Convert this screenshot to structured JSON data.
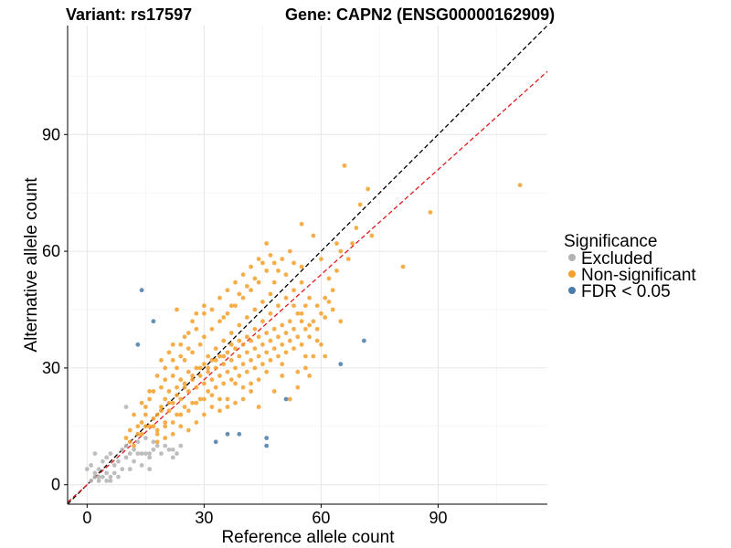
{
  "chart_data": {
    "type": "scatter",
    "title_left": "Variant: rs17597",
    "title_right": "Gene: CAPN2 (ENSG00000162909)",
    "xlabel": "Reference allele count",
    "ylabel": "Alternative allele count",
    "xlim": [
      -5,
      118
    ],
    "ylim": [
      -5,
      118
    ],
    "xticks": [
      0,
      30,
      60,
      90
    ],
    "yticks": [
      0,
      30,
      60,
      90
    ],
    "grid": true,
    "legend": {
      "title": "Significance",
      "position": "right",
      "entries": [
        {
          "label": "Excluded",
          "color": "#b3b3b3"
        },
        {
          "label": "Non-significant",
          "color": "#f5a02a"
        },
        {
          "label": "FDR < 0.05",
          "color": "#4a7aa8"
        }
      ]
    },
    "reference_lines": [
      {
        "name": "identity",
        "slope": 1.0,
        "intercept": 0,
        "color": "#000000",
        "dash": true
      },
      {
        "name": "fitted",
        "slope": 0.9,
        "intercept": 0,
        "color": "#e41a1c",
        "dash": true
      }
    ],
    "series": [
      {
        "group": "Excluded",
        "color": "#b3b3b3",
        "points": [
          [
            1,
            1
          ],
          [
            2,
            2
          ],
          [
            2,
            3
          ],
          [
            3,
            1
          ],
          [
            3,
            2
          ],
          [
            3,
            4
          ],
          [
            4,
            2
          ],
          [
            4,
            6
          ],
          [
            5,
            1
          ],
          [
            5,
            3
          ],
          [
            5,
            7
          ],
          [
            6,
            1
          ],
          [
            6,
            2
          ],
          [
            7,
            3
          ],
          [
            7,
            5
          ],
          [
            8,
            2
          ],
          [
            8,
            6
          ],
          [
            9,
            9
          ],
          [
            9,
            4
          ],
          [
            10,
            10
          ],
          [
            10,
            7
          ],
          [
            11,
            8
          ],
          [
            12,
            9
          ],
          [
            12,
            6
          ],
          [
            13,
            8
          ],
          [
            13,
            11
          ],
          [
            14,
            5
          ],
          [
            14,
            8
          ],
          [
            15,
            8
          ],
          [
            15,
            12
          ],
          [
            16,
            8
          ],
          [
            16,
            7
          ],
          [
            17,
            9
          ],
          [
            17,
            11
          ],
          [
            18,
            10
          ],
          [
            19,
            8
          ],
          [
            20,
            10
          ],
          [
            21,
            9
          ],
          [
            22,
            7
          ],
          [
            23,
            8
          ],
          [
            24,
            10
          ],
          [
            10,
            20
          ],
          [
            1,
            5
          ],
          [
            0,
            4
          ],
          [
            2,
            8
          ],
          [
            6,
            8
          ],
          [
            11,
            4
          ],
          [
            16,
            4
          ],
          [
            22,
            9
          ]
        ]
      },
      {
        "group": "Non-significant",
        "color": "#f5a02a",
        "points": [
          [
            10,
            12
          ],
          [
            11,
            14
          ],
          [
            12,
            10
          ],
          [
            13,
            15
          ],
          [
            14,
            16
          ],
          [
            14,
            13
          ],
          [
            15,
            18
          ],
          [
            15,
            20
          ],
          [
            16,
            15
          ],
          [
            16,
            22
          ],
          [
            17,
            17
          ],
          [
            17,
            24
          ],
          [
            18,
            18
          ],
          [
            18,
            13
          ],
          [
            19,
            20
          ],
          [
            19,
            25
          ],
          [
            20,
            16
          ],
          [
            20,
            22
          ],
          [
            20,
            27
          ],
          [
            21,
            19
          ],
          [
            21,
            24
          ],
          [
            22,
            21
          ],
          [
            22,
            28
          ],
          [
            23,
            18
          ],
          [
            23,
            25
          ],
          [
            23,
            30
          ],
          [
            24,
            22
          ],
          [
            24,
            27
          ],
          [
            25,
            20
          ],
          [
            25,
            26
          ],
          [
            25,
            32
          ],
          [
            26,
            24
          ],
          [
            26,
            29
          ],
          [
            27,
            21
          ],
          [
            27,
            27
          ],
          [
            27,
            34
          ],
          [
            28,
            25
          ],
          [
            28,
            30
          ],
          [
            29,
            22
          ],
          [
            29,
            28
          ],
          [
            29,
            36
          ],
          [
            30,
            26
          ],
          [
            30,
            31
          ],
          [
            30,
            38
          ],
          [
            31,
            24
          ],
          [
            31,
            29
          ],
          [
            31,
            33
          ],
          [
            32,
            27
          ],
          [
            32,
            32
          ],
          [
            32,
            40
          ],
          [
            33,
            25
          ],
          [
            33,
            30
          ],
          [
            33,
            35
          ],
          [
            34,
            28
          ],
          [
            34,
            33
          ],
          [
            34,
            42
          ],
          [
            35,
            26
          ],
          [
            35,
            31
          ],
          [
            35,
            37
          ],
          [
            36,
            29
          ],
          [
            36,
            34
          ],
          [
            36,
            44
          ],
          [
            37,
            27
          ],
          [
            37,
            32
          ],
          [
            37,
            39
          ],
          [
            38,
            30
          ],
          [
            38,
            35
          ],
          [
            38,
            46
          ],
          [
            39,
            28
          ],
          [
            39,
            33
          ],
          [
            39,
            41
          ],
          [
            40,
            31
          ],
          [
            40,
            36
          ],
          [
            40,
            48
          ],
          [
            41,
            29
          ],
          [
            41,
            34
          ],
          [
            41,
            43
          ],
          [
            42,
            32
          ],
          [
            42,
            37
          ],
          [
            42,
            50
          ],
          [
            43,
            30
          ],
          [
            43,
            35
          ],
          [
            43,
            45
          ],
          [
            44,
            33
          ],
          [
            44,
            38
          ],
          [
            44,
            52
          ],
          [
            45,
            31
          ],
          [
            45,
            36
          ],
          [
            45,
            47
          ],
          [
            46,
            34
          ],
          [
            46,
            39
          ],
          [
            46,
            55
          ],
          [
            47,
            32
          ],
          [
            47,
            37
          ],
          [
            47,
            49
          ],
          [
            48,
            35
          ],
          [
            48,
            40
          ],
          [
            48,
            57
          ],
          [
            49,
            33
          ],
          [
            49,
            38
          ],
          [
            50,
            36
          ],
          [
            50,
            41
          ],
          [
            50,
            58
          ],
          [
            51,
            34
          ],
          [
            51,
            39
          ],
          [
            52,
            37
          ],
          [
            52,
            42
          ],
          [
            52,
            60
          ],
          [
            53,
            35
          ],
          [
            53,
            40
          ],
          [
            54,
            38
          ],
          [
            54,
            44
          ],
          [
            55,
            36
          ],
          [
            55,
            42
          ],
          [
            56,
            40
          ],
          [
            56,
            46
          ],
          [
            57,
            38
          ],
          [
            58,
            42
          ],
          [
            59,
            40
          ],
          [
            60,
            44
          ],
          [
            61,
            43
          ],
          [
            62,
            47
          ],
          [
            63,
            50
          ],
          [
            64,
            55
          ],
          [
            65,
            60
          ],
          [
            66,
            82
          ],
          [
            67,
            58
          ],
          [
            68,
            62
          ],
          [
            69,
            66
          ],
          [
            70,
            72
          ],
          [
            72,
            76
          ],
          [
            73,
            64
          ],
          [
            81,
            56
          ],
          [
            88,
            70
          ],
          [
            111,
            77
          ],
          [
            55,
            67
          ],
          [
            58,
            64
          ],
          [
            60,
            58
          ],
          [
            62,
            53
          ],
          [
            64,
            62
          ],
          [
            56,
            33
          ],
          [
            57,
            28
          ],
          [
            54,
            25
          ],
          [
            52,
            22
          ],
          [
            50,
            28
          ],
          [
            48,
            24
          ],
          [
            44,
            20
          ],
          [
            42,
            24
          ],
          [
            40,
            22
          ],
          [
            38,
            26
          ],
          [
            36,
            22
          ],
          [
            34,
            19
          ],
          [
            32,
            20
          ],
          [
            30,
            18
          ],
          [
            28,
            16
          ],
          [
            26,
            14
          ],
          [
            24,
            15
          ],
          [
            22,
            13
          ],
          [
            20,
            12
          ],
          [
            18,
            11
          ],
          [
            23,
            45
          ],
          [
            28,
            40
          ],
          [
            30,
            44
          ],
          [
            25,
            38
          ],
          [
            27,
            42
          ],
          [
            21,
            34
          ],
          [
            19,
            32
          ],
          [
            22,
            36
          ],
          [
            26,
            35
          ],
          [
            24,
            33
          ],
          [
            32,
            45
          ],
          [
            34,
            48
          ],
          [
            36,
            50
          ],
          [
            38,
            52
          ],
          [
            40,
            54
          ],
          [
            42,
            56
          ],
          [
            44,
            58
          ],
          [
            46,
            62
          ],
          [
            48,
            52
          ],
          [
            51,
            54
          ],
          [
            53,
            50
          ],
          [
            55,
            52
          ],
          [
            57,
            48
          ],
          [
            59,
            46
          ],
          [
            61,
            48
          ],
          [
            63,
            45
          ],
          [
            65,
            42
          ],
          [
            53,
            57
          ],
          [
            55,
            56
          ],
          [
            47,
            44
          ],
          [
            49,
            46
          ],
          [
            45,
            42
          ],
          [
            43,
            40
          ],
          [
            41,
            38
          ],
          [
            39,
            37
          ],
          [
            37,
            36
          ],
          [
            35,
            33
          ],
          [
            33,
            32
          ],
          [
            31,
            30
          ],
          [
            29,
            30
          ],
          [
            27,
            28
          ],
          [
            25,
            25
          ],
          [
            23,
            23
          ],
          [
            21,
            21
          ],
          [
            19,
            19
          ],
          [
            17,
            15
          ],
          [
            15,
            15
          ],
          [
            13,
            13
          ],
          [
            11,
            11
          ],
          [
            20,
            30
          ],
          [
            18,
            28
          ],
          [
            16,
            24
          ],
          [
            14,
            21
          ],
          [
            12,
            18
          ],
          [
            22,
            32
          ],
          [
            24,
            36
          ],
          [
            26,
            39
          ],
          [
            28,
            44
          ],
          [
            30,
            46
          ],
          [
            35,
            43
          ],
          [
            37,
            46
          ],
          [
            39,
            49
          ],
          [
            41,
            51
          ],
          [
            43,
            53
          ],
          [
            45,
            57
          ],
          [
            47,
            59
          ],
          [
            49,
            55
          ],
          [
            51,
            48
          ],
          [
            53,
            46
          ],
          [
            55,
            44
          ],
          [
            57,
            41
          ],
          [
            59,
            37
          ],
          [
            61,
            33
          ],
          [
            60,
            36
          ],
          [
            58,
            33
          ],
          [
            56,
            30
          ],
          [
            54,
            29
          ],
          [
            50,
            31
          ],
          [
            46,
            29
          ],
          [
            44,
            27
          ],
          [
            42,
            26
          ],
          [
            40,
            25
          ],
          [
            38,
            21
          ],
          [
            36,
            20
          ],
          [
            34,
            22
          ],
          [
            32,
            23
          ],
          [
            30,
            22
          ],
          [
            28,
            21
          ],
          [
            26,
            19
          ],
          [
            24,
            18
          ],
          [
            22,
            16
          ],
          [
            20,
            15
          ],
          [
            18,
            14
          ]
        ]
      },
      {
        "group": "FDR < 0.05",
        "color": "#4a7aa8",
        "points": [
          [
            14,
            50
          ],
          [
            17,
            42
          ],
          [
            13,
            36
          ],
          [
            33,
            11
          ],
          [
            36,
            13
          ],
          [
            39,
            13
          ],
          [
            46,
            12
          ],
          [
            46,
            10
          ],
          [
            51,
            22
          ],
          [
            65,
            31
          ],
          [
            71,
            37
          ]
        ]
      }
    ]
  }
}
